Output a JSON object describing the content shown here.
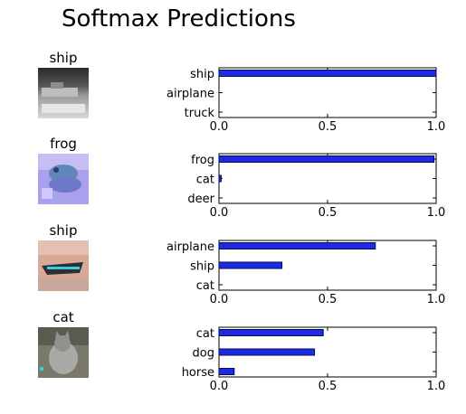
{
  "title": "Softmax Predictions",
  "colors": {
    "bar": "#1a2ce8",
    "bar_edge": "#0a0a50",
    "axis": "#000000"
  },
  "panels": [
    {
      "true_label": "ship",
      "image": "ship-grayscale-thumbnail"
    },
    {
      "true_label": "frog",
      "image": "frog-purple-thumbnail"
    },
    {
      "true_label": "ship",
      "image": "ship-boat-thumbnail"
    },
    {
      "true_label": "cat",
      "image": "cat-thumbnail"
    }
  ],
  "chart_data": [
    {
      "type": "bar",
      "orientation": "horizontal",
      "categories": [
        "ship",
        "airplane",
        "truck"
      ],
      "values": [
        1.0,
        0.0,
        0.0
      ],
      "xlim": [
        0,
        1
      ],
      "xticks": [
        "0.0",
        "0.5",
        "1.0"
      ]
    },
    {
      "type": "bar",
      "orientation": "horizontal",
      "categories": [
        "frog",
        "cat",
        "deer"
      ],
      "values": [
        0.99,
        0.01,
        0.0
      ],
      "xlim": [
        0,
        1
      ],
      "xticks": [
        "0.0",
        "0.5",
        "1.0"
      ]
    },
    {
      "type": "bar",
      "orientation": "horizontal",
      "categories": [
        "airplane",
        "ship",
        "cat"
      ],
      "values": [
        0.72,
        0.29,
        0.0
      ],
      "xlim": [
        0,
        1
      ],
      "xticks": [
        "0.0",
        "0.5",
        "1.0"
      ]
    },
    {
      "type": "bar",
      "orientation": "horizontal",
      "categories": [
        "cat",
        "dog",
        "horse"
      ],
      "values": [
        0.48,
        0.44,
        0.07
      ],
      "xlim": [
        0,
        1
      ],
      "xticks": [
        "0.0",
        "0.5",
        "1.0"
      ]
    }
  ]
}
